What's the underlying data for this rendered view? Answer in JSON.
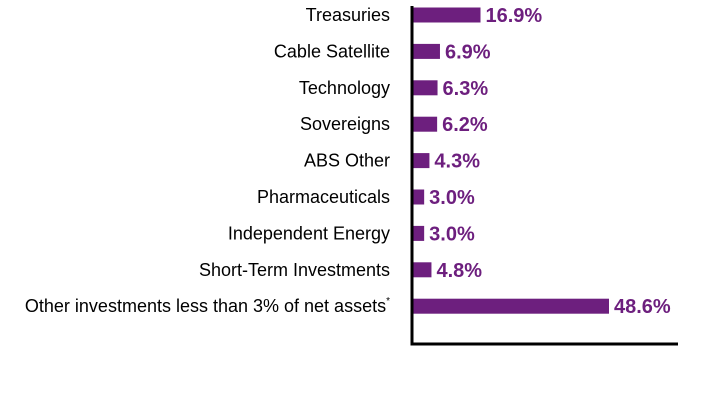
{
  "chart_data": {
    "type": "bar",
    "orientation": "horizontal",
    "title": "",
    "xlabel": "",
    "ylabel": "",
    "categories": [
      "Treasuries",
      "Cable Satellite",
      "Technology",
      "Sovereigns",
      "ABS Other",
      "Pharmaceuticals",
      "Independent Energy",
      "Short-Term Investments",
      "Other investments less than 3% of net assets"
    ],
    "category_footnote_marks": [
      "",
      "",
      "",
      "",
      "",
      "",
      "",
      "",
      "*"
    ],
    "values": [
      16.9,
      6.9,
      6.3,
      6.2,
      4.3,
      3.0,
      3.0,
      4.8,
      48.6
    ],
    "value_labels": [
      "16.9%",
      "6.9%",
      "6.3%",
      "6.2%",
      "4.3%",
      "3.0%",
      "3.0%",
      "4.8%",
      "48.6%"
    ],
    "xlim": [
      0,
      65
    ],
    "grid": false,
    "legend": "none",
    "colors": {
      "bar": "#6d1f7e",
      "value_label": "#6d1f7e",
      "axis": "#000000"
    }
  }
}
